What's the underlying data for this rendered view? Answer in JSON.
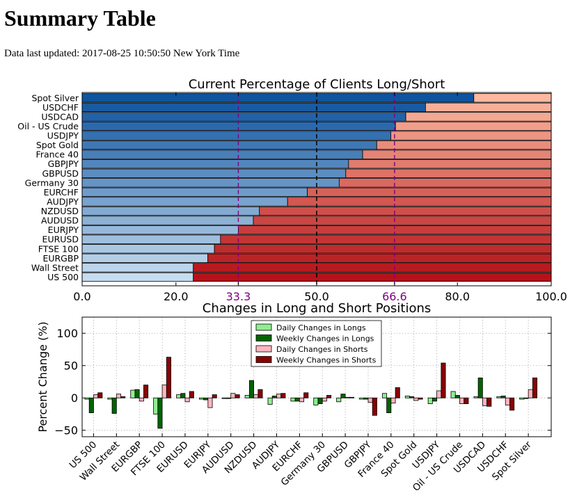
{
  "page": {
    "title": "Summary Table",
    "updated_label": "Data last updated:",
    "updated_value": "2017-08-25 10:50:50 New York Time"
  },
  "chart_data": [
    {
      "type": "bar",
      "orientation": "horizontal",
      "stacked": true,
      "title": "Current Percentage of Clients Long/Short",
      "categories": [
        "Spot Silver",
        "USDCHF",
        "USDCAD",
        "Oil - US Crude",
        "USDJPY",
        "Spot Gold",
        "France 40",
        "GBPJPY",
        "GBPUSD",
        "Germany 30",
        "EURCHF",
        "AUDJPY",
        "NZDUSD",
        "AUDUSD",
        "EURJPY",
        "EURUSD",
        "FTSE 100",
        "EURGBP",
        "Wall Street",
        "US 500"
      ],
      "series": [
        {
          "values": [
            83.5,
            73.2,
            69.0,
            66.8,
            65.8,
            62.8,
            59.8,
            56.8,
            56.2,
            54.8,
            48.0,
            43.8,
            37.8,
            36.5,
            33.3,
            29.5,
            28.2,
            26.8,
            23.7,
            23.7
          ]
        },
        {
          "values": [
            16.5,
            26.8,
            31.0,
            33.2,
            34.2,
            37.2,
            40.2,
            43.2,
            43.8,
            45.2,
            52.0,
            56.2,
            62.2,
            63.5,
            66.7,
            70.5,
            71.8,
            73.2,
            76.3,
            76.3
          ]
        }
      ],
      "xlim": [
        0,
        100
      ],
      "xticks": [
        "0.0",
        "20.0",
        "33.3",
        "50.0",
        "66.6",
        "80.0",
        "100.0"
      ],
      "reference_lines": [
        33.3,
        50.0,
        66.6
      ],
      "colors": {
        "long": "#2b7bba",
        "short": "#e8473b",
        "reference": "#800080"
      }
    },
    {
      "type": "bar",
      "title": "Changes in Long and Short Positions",
      "ylabel": "Percent Change (%)",
      "ylim": [
        -60,
        125
      ],
      "yticks": [
        "100",
        "50",
        "0",
        "−50"
      ],
      "grid": true,
      "legend_position": "top-center",
      "categories": [
        "US 500",
        "Wall Street",
        "EURGBP",
        "FTSE 100",
        "EURUSD",
        "EURJPY",
        "AUDUSD",
        "NZDUSD",
        "AUDJPY",
        "EURCHF",
        "Germany 30",
        "GBPUSD",
        "GBPJPY",
        "France 40",
        "Spot Gold",
        "USDJPY",
        "Oil - US Crude",
        "USDCAD",
        "USDCHF",
        "Spot Silver"
      ],
      "series": [
        {
          "name": "Daily Changes in Longs",
          "color": "#90ee90",
          "values": [
            -2,
            -2,
            12,
            -25,
            5,
            -2,
            -1,
            4,
            -10,
            -5,
            -11,
            -6,
            -2,
            7,
            3,
            -9,
            10,
            2,
            2,
            -2
          ]
        },
        {
          "name": "Weekly Changes in Longs",
          "color": "#006400",
          "values": [
            -23,
            -24,
            13,
            -47,
            7,
            -3,
            -1,
            27,
            3,
            -5,
            -9,
            6,
            -2,
            -23,
            2,
            -5,
            4,
            31,
            3,
            -1
          ]
        },
        {
          "name": "Daily Changes in Shorts",
          "color": "#ffb6c1",
          "values": [
            5,
            6,
            -5,
            20,
            -6,
            -15,
            7,
            5,
            6,
            -6,
            -5,
            1,
            -7,
            -8,
            -4,
            11,
            -9,
            -12,
            -11,
            13
          ]
        },
        {
          "name": "Weekly Changes in Shorts",
          "color": "#8b0000",
          "values": [
            8,
            2,
            20,
            63,
            10,
            5,
            5,
            13,
            7,
            8,
            4,
            1,
            -27,
            16,
            -2,
            54,
            -9,
            -13,
            -19,
            31
          ]
        }
      ]
    }
  ]
}
